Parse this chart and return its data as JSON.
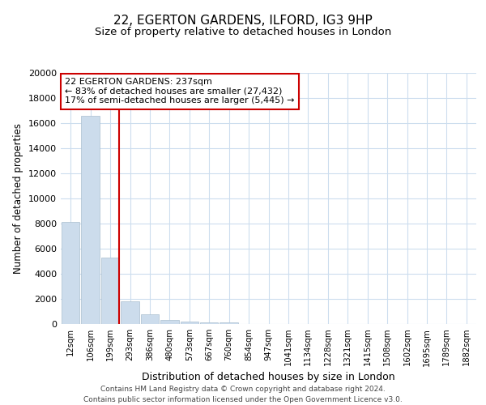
{
  "title1": "22, EGERTON GARDENS, ILFORD, IG3 9HP",
  "title2": "Size of property relative to detached houses in London",
  "xlabel": "Distribution of detached houses by size in London",
  "ylabel": "Number of detached properties",
  "categories": [
    "12sqm",
    "106sqm",
    "199sqm",
    "293sqm",
    "386sqm",
    "480sqm",
    "573sqm",
    "667sqm",
    "760sqm",
    "854sqm",
    "947sqm",
    "1041sqm",
    "1134sqm",
    "1228sqm",
    "1321sqm",
    "1415sqm",
    "1508sqm",
    "1602sqm",
    "1695sqm",
    "1789sqm",
    "1882sqm"
  ],
  "values": [
    8150,
    16600,
    5300,
    1800,
    750,
    300,
    170,
    100,
    120,
    0,
    0,
    0,
    0,
    0,
    0,
    0,
    0,
    0,
    0,
    0,
    0
  ],
  "bar_color": "#ccdcec",
  "bar_edge_color": "#aabfcf",
  "vline_color": "#cc0000",
  "vline_x_index": 2,
  "annotation_text": "22 EGERTON GARDENS: 237sqm\n← 83% of detached houses are smaller (27,432)\n17% of semi-detached houses are larger (5,445) →",
  "annotation_box_facecolor": "#ffffff",
  "annotation_box_edgecolor": "#cc0000",
  "ylim": [
    0,
    20000
  ],
  "yticks": [
    0,
    2000,
    4000,
    6000,
    8000,
    10000,
    12000,
    14000,
    16000,
    18000,
    20000
  ],
  "bg_color": "#ffffff",
  "plot_bg_color": "#ffffff",
  "grid_color": "#ccddee",
  "footer1": "Contains HM Land Registry data © Crown copyright and database right 2024.",
  "footer2": "Contains public sector information licensed under the Open Government Licence v3.0.",
  "title1_fontsize": 11,
  "title2_fontsize": 9.5,
  "xlabel_fontsize": 9,
  "ylabel_fontsize": 8.5,
  "annot_fontsize": 8,
  "footer_fontsize": 6.5
}
